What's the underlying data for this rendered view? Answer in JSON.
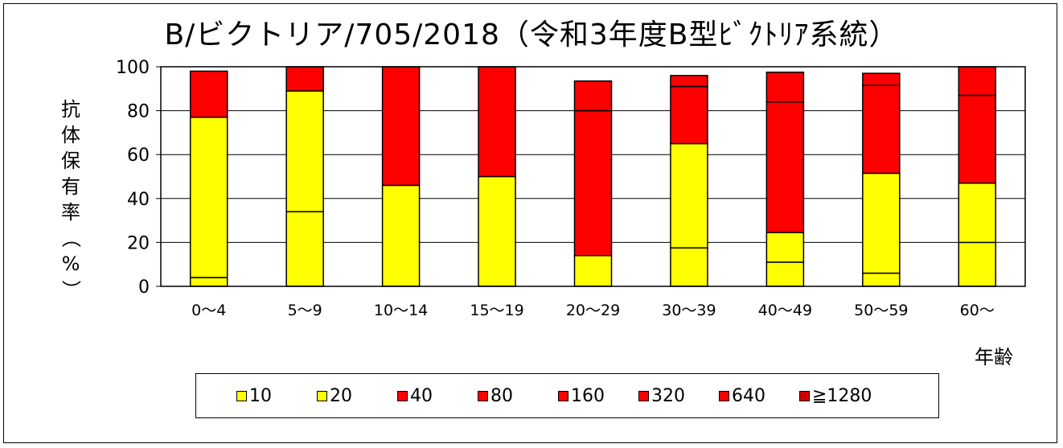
{
  "chart_data": {
    "type": "bar",
    "stacked": true,
    "title": "B/ビクトリア/705/2018（令和3年度B型ﾋﾞｸﾄﾘｱ系統）",
    "ylabel": "抗体保有率（%）",
    "xlabel": "年齢",
    "ylim": [
      0,
      100
    ],
    "yticks": [
      "0",
      "20",
      "40",
      "60",
      "80",
      "100"
    ],
    "grid": true,
    "legend_position": "bottom",
    "categories": [
      "0～4",
      "5～9",
      "10～14",
      "15～19",
      "20～29",
      "30～39",
      "40～49",
      "50～59",
      "60～"
    ],
    "series": [
      {
        "name": "10",
        "color": "#ffff00",
        "values": [
          4,
          34,
          46,
          50,
          14,
          17.5,
          11,
          6,
          20
        ]
      },
      {
        "name": "20",
        "color": "#ffff00",
        "values": [
          73,
          55,
          0,
          0,
          0,
          47.5,
          13.5,
          45.5,
          27
        ]
      },
      {
        "name": "40",
        "color": "#ff0000",
        "values": [
          21,
          11,
          54,
          50,
          66,
          26,
          59.5,
          40,
          40
        ]
      },
      {
        "name": "80",
        "color": "#ff0000",
        "values": [
          0,
          0,
          0,
          0,
          13.5,
          5,
          13.5,
          5.5,
          13
        ]
      },
      {
        "name": "160",
        "color": "#ff0000",
        "values": [
          0,
          0,
          0,
          0,
          0,
          0,
          0,
          0,
          0
        ]
      },
      {
        "name": "320",
        "color": "#ff0000",
        "values": [
          0,
          0,
          0,
          0,
          0,
          0,
          0,
          0,
          0
        ]
      },
      {
        "name": "640",
        "color": "#ff0000",
        "values": [
          0,
          0,
          0,
          0,
          0,
          0,
          0,
          0,
          0
        ]
      },
      {
        "name": "≧1280",
        "color": "#cc0000",
        "values": [
          0,
          0,
          0,
          0,
          0,
          0,
          0,
          0,
          0
        ]
      }
    ]
  }
}
